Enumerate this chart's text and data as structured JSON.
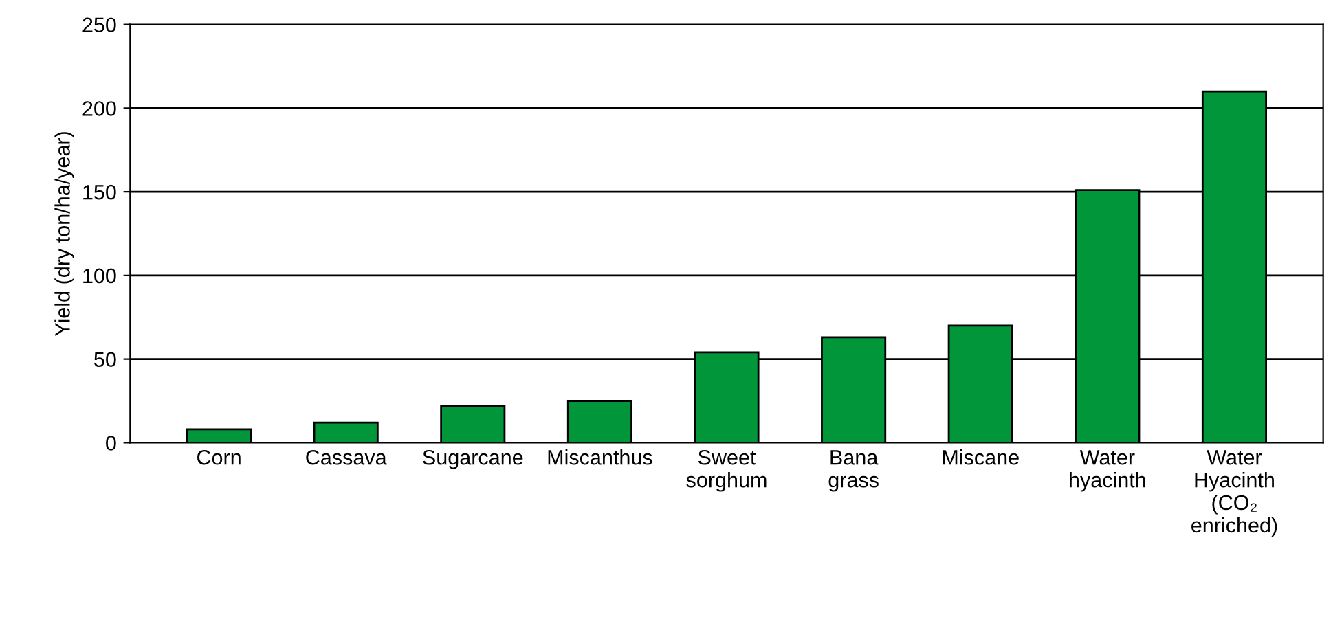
{
  "chart_data": {
    "type": "bar",
    "ylabel": "Yield (dry ton/ha/year)",
    "categories": [
      "Corn",
      "Cassava",
      "Sugarcane",
      "Miscanthus",
      "Sweet\nsorghum",
      "Bana\ngrass",
      "Miscane",
      "Water\nhyacinth",
      "Water\nHyacinth\n(CO₂\nenriched)"
    ],
    "values": [
      8,
      12,
      22,
      25,
      54,
      63,
      70,
      151,
      210
    ],
    "color": "#009639",
    "ylim": [
      0,
      250
    ],
    "yticks": [
      0,
      50,
      100,
      150,
      200,
      250
    ],
    "grid": "y"
  }
}
